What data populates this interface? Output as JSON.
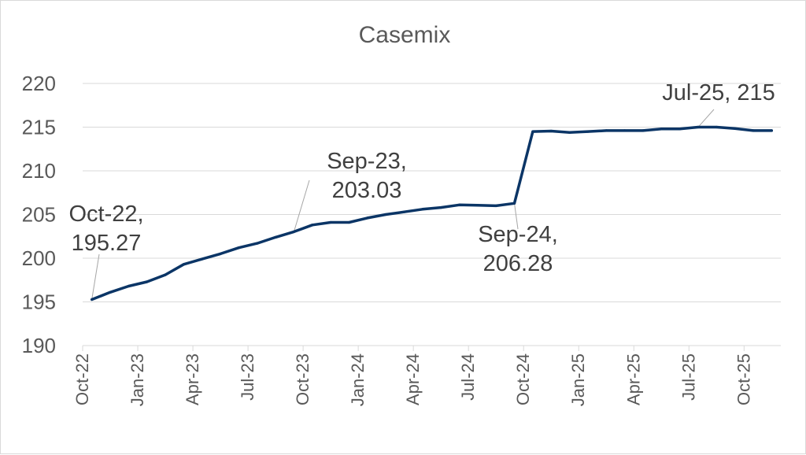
{
  "chart_data": {
    "type": "line",
    "title": "Casemix",
    "xlabel": "",
    "ylabel": "",
    "ylim": [
      190,
      220
    ],
    "yticks": [
      "190",
      "195",
      "200",
      "205",
      "210",
      "215",
      "220"
    ],
    "grid": true,
    "legend": "none",
    "colors": {
      "line": "#0b3566",
      "grid": "#d9d9d9",
      "text": "#595959",
      "leader": "#a6a6a6"
    },
    "x_tick_labels": [
      "Oct-22",
      "Jan-23",
      "Apr-23",
      "Jul-23",
      "Oct-23",
      "Jan-24",
      "Apr-24",
      "Jul-24",
      "Oct-24",
      "Jan-25",
      "Apr-25",
      "Jul-25",
      "Oct-25"
    ],
    "categories": [
      "Oct-22",
      "Nov-22",
      "Dec-22",
      "Jan-23",
      "Feb-23",
      "Mar-23",
      "Apr-23",
      "May-23",
      "Jun-23",
      "Jul-23",
      "Aug-23",
      "Sep-23",
      "Oct-23",
      "Nov-23",
      "Dec-23",
      "Jan-24",
      "Feb-24",
      "Mar-24",
      "Apr-24",
      "May-24",
      "Jun-24",
      "Jul-24",
      "Aug-24",
      "Sep-24",
      "Oct-24",
      "Nov-24",
      "Dec-24",
      "Jan-25",
      "Feb-25",
      "Mar-25",
      "Apr-25",
      "May-25",
      "Jun-25",
      "Jul-25",
      "Aug-25",
      "Sep-25",
      "Oct-25",
      "Nov-25"
    ],
    "series": [
      {
        "values": [
          195.27,
          196.1,
          196.8,
          197.3,
          198.1,
          199.3,
          199.9,
          200.5,
          201.2,
          201.7,
          202.4,
          203.03,
          203.8,
          204.1,
          204.1,
          204.6,
          205.0,
          205.3,
          205.6,
          205.8,
          206.1,
          206.05,
          206.0,
          206.28,
          214.5,
          214.55,
          214.4,
          214.5,
          214.6,
          214.6,
          214.6,
          214.8,
          214.8,
          215.0,
          215.0,
          214.85,
          214.6,
          214.6
        ]
      }
    ],
    "annotations": [
      {
        "category": "Oct-22",
        "lines": [
          "Oct-22,",
          "195.27"
        ]
      },
      {
        "category": "Sep-23",
        "lines": [
          "Sep-23,",
          "203.03"
        ]
      },
      {
        "category": "Sep-24",
        "lines": [
          "Sep-24,",
          "206.28"
        ]
      },
      {
        "category": "Jul-25",
        "lines": [
          "Jul-25, 215"
        ]
      }
    ]
  }
}
